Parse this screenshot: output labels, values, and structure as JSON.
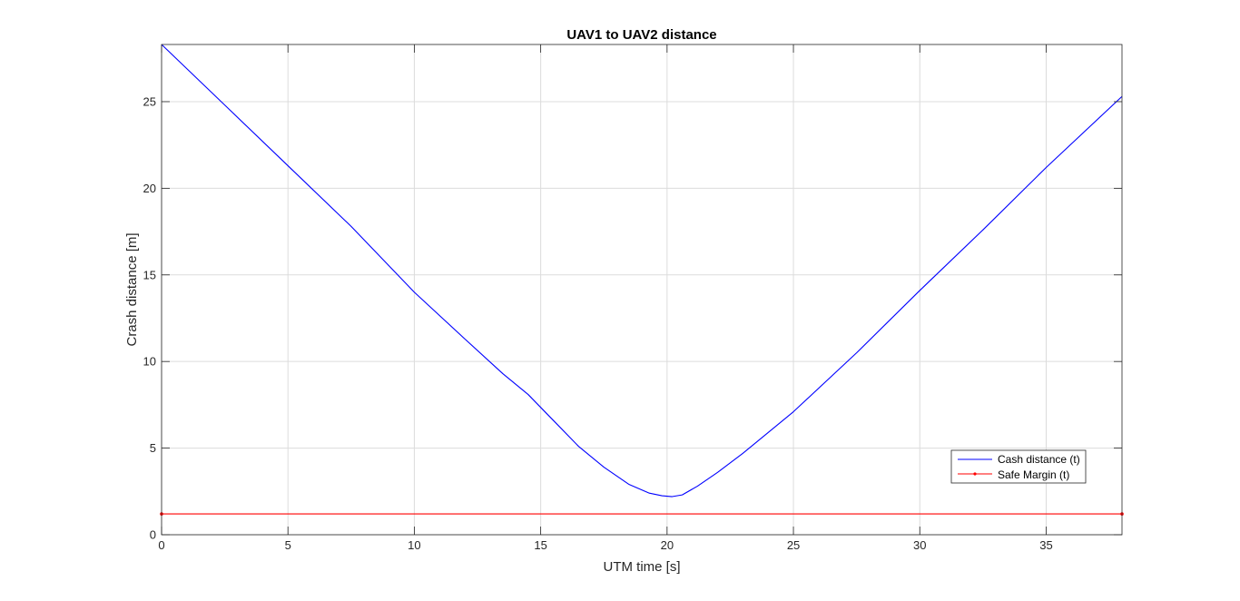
{
  "chart_data": {
    "type": "line",
    "title": "UAV1 to UAV2 distance",
    "xlabel": "UTM time [s]",
    "ylabel": "Crash distance [m]",
    "xlim": [
      0,
      38
    ],
    "ylim": [
      0,
      28.3
    ],
    "xticks": [
      0,
      5,
      10,
      15,
      20,
      25,
      30,
      35
    ],
    "yticks": [
      0,
      5,
      10,
      15,
      20,
      25
    ],
    "grid": true,
    "legend_position": "lower-right",
    "series": [
      {
        "name": "Cash distance (t)",
        "color": "#0000ff",
        "marker": "none",
        "x": [
          0,
          2.5,
          5,
          7.5,
          10,
          12,
          13.5,
          14.5,
          15.5,
          16.5,
          17.5,
          18.5,
          19.3,
          19.8,
          20.2,
          20.6,
          21.2,
          22,
          23,
          24,
          25,
          27.5,
          30,
          32.5,
          35,
          38
        ],
        "y": [
          28.3,
          24.8,
          21.3,
          17.8,
          14,
          11.3,
          9.3,
          8.1,
          6.6,
          5.1,
          3.9,
          2.9,
          2.4,
          2.25,
          2.2,
          2.3,
          2.8,
          3.6,
          4.7,
          5.9,
          7.1,
          10.5,
          14.1,
          17.6,
          21.2,
          25.3
        ]
      },
      {
        "name": "Safe Margin (t)",
        "color": "#ff0000",
        "marker": "dot",
        "x": [
          0,
          38
        ],
        "y": [
          1.2,
          1.2
        ]
      }
    ]
  }
}
